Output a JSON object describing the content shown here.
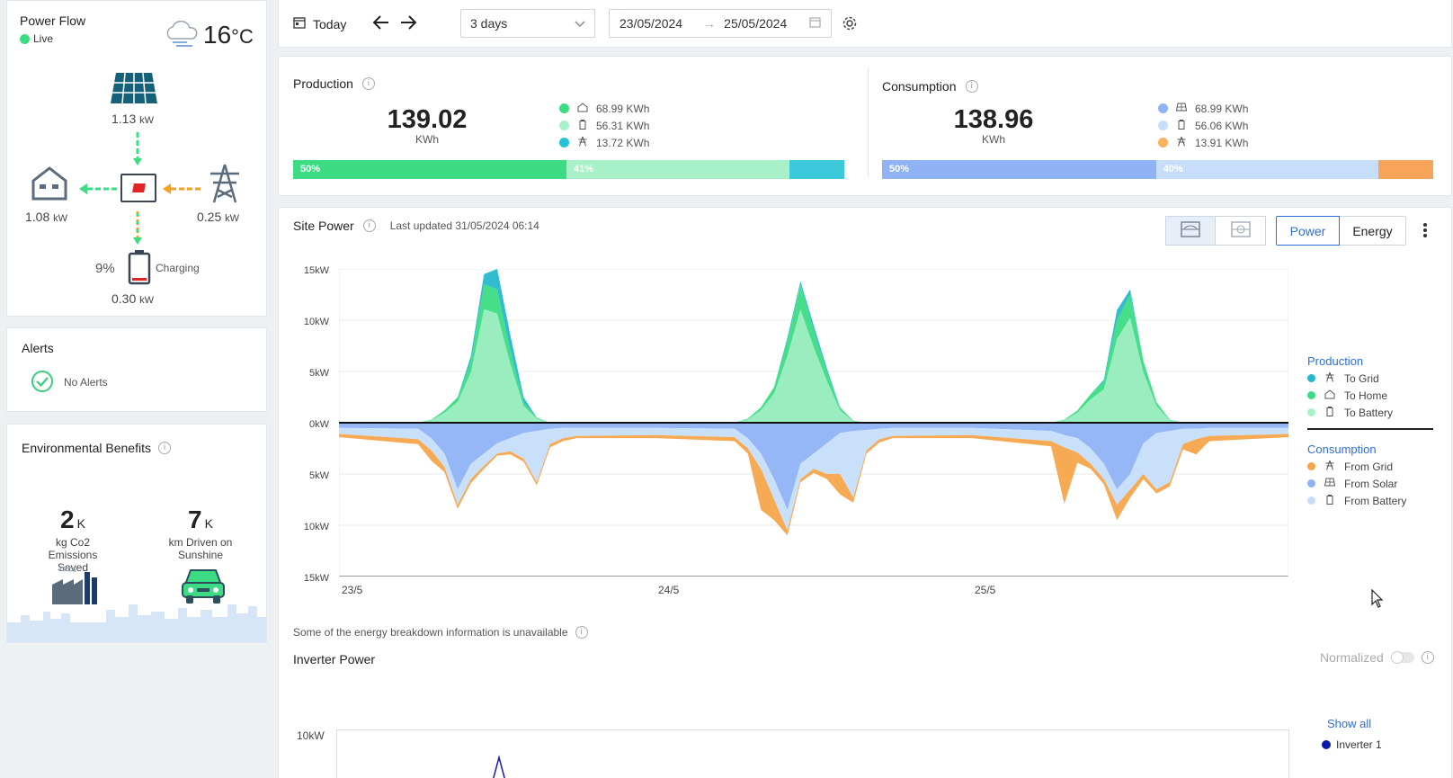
{
  "power_flow": {
    "title": "Power Flow",
    "live_label": "Live",
    "temperature": "16",
    "temperature_unit": "°C",
    "solar_value": "1.13",
    "solar_unit": "kW",
    "home_value": "1.08",
    "home_unit": "kW",
    "grid_value": "0.25",
    "grid_unit": "kW",
    "battery_pct": "9%",
    "battery_status": "Charging",
    "battery_value": "0.30",
    "battery_unit": "kW"
  },
  "alerts": {
    "title": "Alerts",
    "status": "No Alerts"
  },
  "env": {
    "title": "Environmental Benefits",
    "co2_value": "2",
    "co2_unit": "K",
    "co2_label": "kg Co2 Emissions Saved",
    "km_value": "7",
    "km_unit": "K",
    "km_label": "km Driven on Sunshine"
  },
  "toolbar": {
    "today_label": "Today",
    "range_value": "3 days",
    "date_from": "23/05/2024",
    "date_to": "25/05/2024",
    "date_arrow": "→"
  },
  "production": {
    "title": "Production",
    "total": "139.02",
    "unit": "KWh",
    "items": [
      {
        "value": "68.99 KWh",
        "color": "#3ddc84",
        "icon": "home-icon"
      },
      {
        "value": "56.31 KWh",
        "color": "#a8f0c8",
        "icon": "battery-icon"
      },
      {
        "value": "13.72 KWh",
        "color": "#26c2d6",
        "icon": "grid-tower-icon"
      }
    ],
    "bar": [
      {
        "label": "50%",
        "pct": 49.6,
        "color": "#3ddc84"
      },
      {
        "label": "41%",
        "pct": 40.5,
        "color": "#a8f0c8"
      },
      {
        "label": "",
        "pct": 9.9,
        "color": "#3cc9dc"
      }
    ]
  },
  "consumption": {
    "title": "Consumption",
    "total": "138.96",
    "unit": "KWh",
    "items": [
      {
        "value": "68.99 KWh",
        "color": "#8fb3f5",
        "icon": "solar-panel-icon"
      },
      {
        "value": "56.06 KWh",
        "color": "#c6defa",
        "icon": "battery-icon"
      },
      {
        "value": "13.91 KWh",
        "color": "#f7b25a",
        "icon": "grid-tower-icon"
      }
    ],
    "bar": [
      {
        "label": "50%",
        "pct": 49.7,
        "color": "#8fb3f5"
      },
      {
        "label": "40%",
        "pct": 40.3,
        "color": "#c6defa"
      },
      {
        "label": "",
        "pct": 10.0,
        "color": "#f7a35a"
      }
    ]
  },
  "site_power": {
    "title": "Site Power",
    "last_updated": "Last updated 31/05/2024 06:14",
    "btn_power": "Power",
    "btn_energy": "Energy",
    "legend_production_title": "Production",
    "legend_production": [
      {
        "label": "To Grid",
        "color": "#26b8cc",
        "icon": "grid-tower-icon"
      },
      {
        "label": "To Home",
        "color": "#3ddc84",
        "icon": "home-icon"
      },
      {
        "label": "To Battery",
        "color": "#a8f0c8",
        "icon": "battery-icon"
      }
    ],
    "legend_consumption_title": "Consumption",
    "legend_consumption": [
      {
        "label": "From Grid",
        "color": "#f5a54a",
        "icon": "grid-tower-icon"
      },
      {
        "label": "From Solar",
        "color": "#8fb3f5",
        "icon": "solar-panel-icon"
      },
      {
        "label": "From Battery",
        "color": "#c6defa",
        "icon": "battery-icon"
      }
    ],
    "note": "Some of the energy breakdown information is unavailable"
  },
  "chart_data": {
    "type": "area",
    "yticks": [
      "15kW",
      "10kW",
      "5kW",
      "0kW",
      "5kW",
      "10kW",
      "15kW"
    ],
    "ylim": [
      -15,
      15
    ],
    "xticks": [
      "23/5",
      "24/5",
      "25/5"
    ],
    "x": [
      0,
      6,
      7,
      8,
      9,
      10,
      11,
      12,
      13,
      14,
      15,
      16,
      17,
      18,
      24,
      30,
      31,
      32,
      33,
      34,
      35,
      36,
      37,
      38,
      39,
      40,
      41,
      42,
      48,
      54,
      55,
      56,
      57,
      58,
      59,
      60,
      61,
      62,
      63,
      64,
      65,
      66,
      72
    ],
    "series": [
      {
        "name": "To Home",
        "values": [
          0,
          0,
          0.3,
          1.2,
          2.5,
          6,
          13.5,
          13,
          7,
          2,
          0.5,
          0,
          0,
          0,
          0,
          0,
          0.4,
          1.5,
          3.5,
          8,
          13.5,
          9,
          5,
          1.5,
          0.2,
          0,
          0,
          0,
          0,
          0,
          0.3,
          1.2,
          2.8,
          4,
          10,
          12.5,
          6,
          2,
          0.3,
          0,
          0,
          0,
          0
        ]
      },
      {
        "name": "To Grid",
        "values": [
          0,
          0,
          0,
          0,
          0,
          0.5,
          1,
          2,
          1.5,
          0.5,
          0,
          0,
          0,
          0,
          0,
          0,
          0,
          0,
          0,
          0.3,
          0.3,
          0.5,
          0.3,
          0,
          0,
          0,
          0,
          0,
          0,
          0,
          0,
          0,
          0,
          0.2,
          1,
          0.5,
          0,
          0,
          0,
          0,
          0,
          0,
          0
        ]
      },
      {
        "name": "From Solar",
        "values": [
          -0.5,
          -0.6,
          -1.5,
          -3,
          -6.5,
          -4,
          -3,
          -2,
          -1.5,
          -1,
          -0.8,
          -0.6,
          -0.5,
          -0.5,
          -0.5,
          -0.6,
          -1.5,
          -3,
          -5.5,
          -8.5,
          -4,
          -3,
          -2,
          -1,
          -0.8,
          -0.7,
          -0.6,
          -0.5,
          -0.5,
          -0.8,
          -1.2,
          -1.5,
          -2.5,
          -4,
          -6.5,
          -5,
          -2,
          -1,
          -0.8,
          -0.6,
          -0.6,
          -0.5,
          -0.5
        ]
      },
      {
        "name": "From Battery",
        "values": [
          -0.6,
          -1,
          -1.2,
          -1.3,
          -1.5,
          -1.5,
          -1.2,
          -1,
          -1.3,
          -2.5,
          -5,
          -1.5,
          -1,
          -0.8,
          -0.7,
          -0.8,
          -1,
          -1.5,
          -2,
          -2,
          -1.5,
          -1.5,
          -3,
          -4,
          -6.5,
          -2,
          -1,
          -0.8,
          -0.7,
          -1,
          -1.2,
          -1.4,
          -1.5,
          -1.5,
          -1.5,
          -1.5,
          -3,
          -5.5,
          -5,
          -1.5,
          -1,
          -0.8,
          -0.6
        ]
      },
      {
        "name": "From Grid",
        "values": [
          -0.3,
          -0.5,
          -1,
          -0.5,
          -0.4,
          -0.4,
          -0.3,
          -0.2,
          -0.3,
          -0.3,
          -0.3,
          -0.3,
          -0.3,
          -0.2,
          -0.3,
          -0.4,
          -0.5,
          -4,
          -2,
          -0.5,
          -0.3,
          -0.4,
          -0.5,
          -2,
          -0.5,
          -0.3,
          -0.3,
          -0.2,
          -0.3,
          -0.5,
          -5.5,
          -1,
          -0.5,
          -0.5,
          -1.5,
          -0.8,
          -0.5,
          -0.4,
          -0.4,
          -0.5,
          -1.5,
          -0.5,
          -0.3
        ]
      }
    ]
  },
  "inverter": {
    "title": "Inverter Power",
    "normalized_label": "Normalized",
    "ytick": "10kW",
    "show_all": "Show all",
    "series_name": "Inverter 1"
  }
}
